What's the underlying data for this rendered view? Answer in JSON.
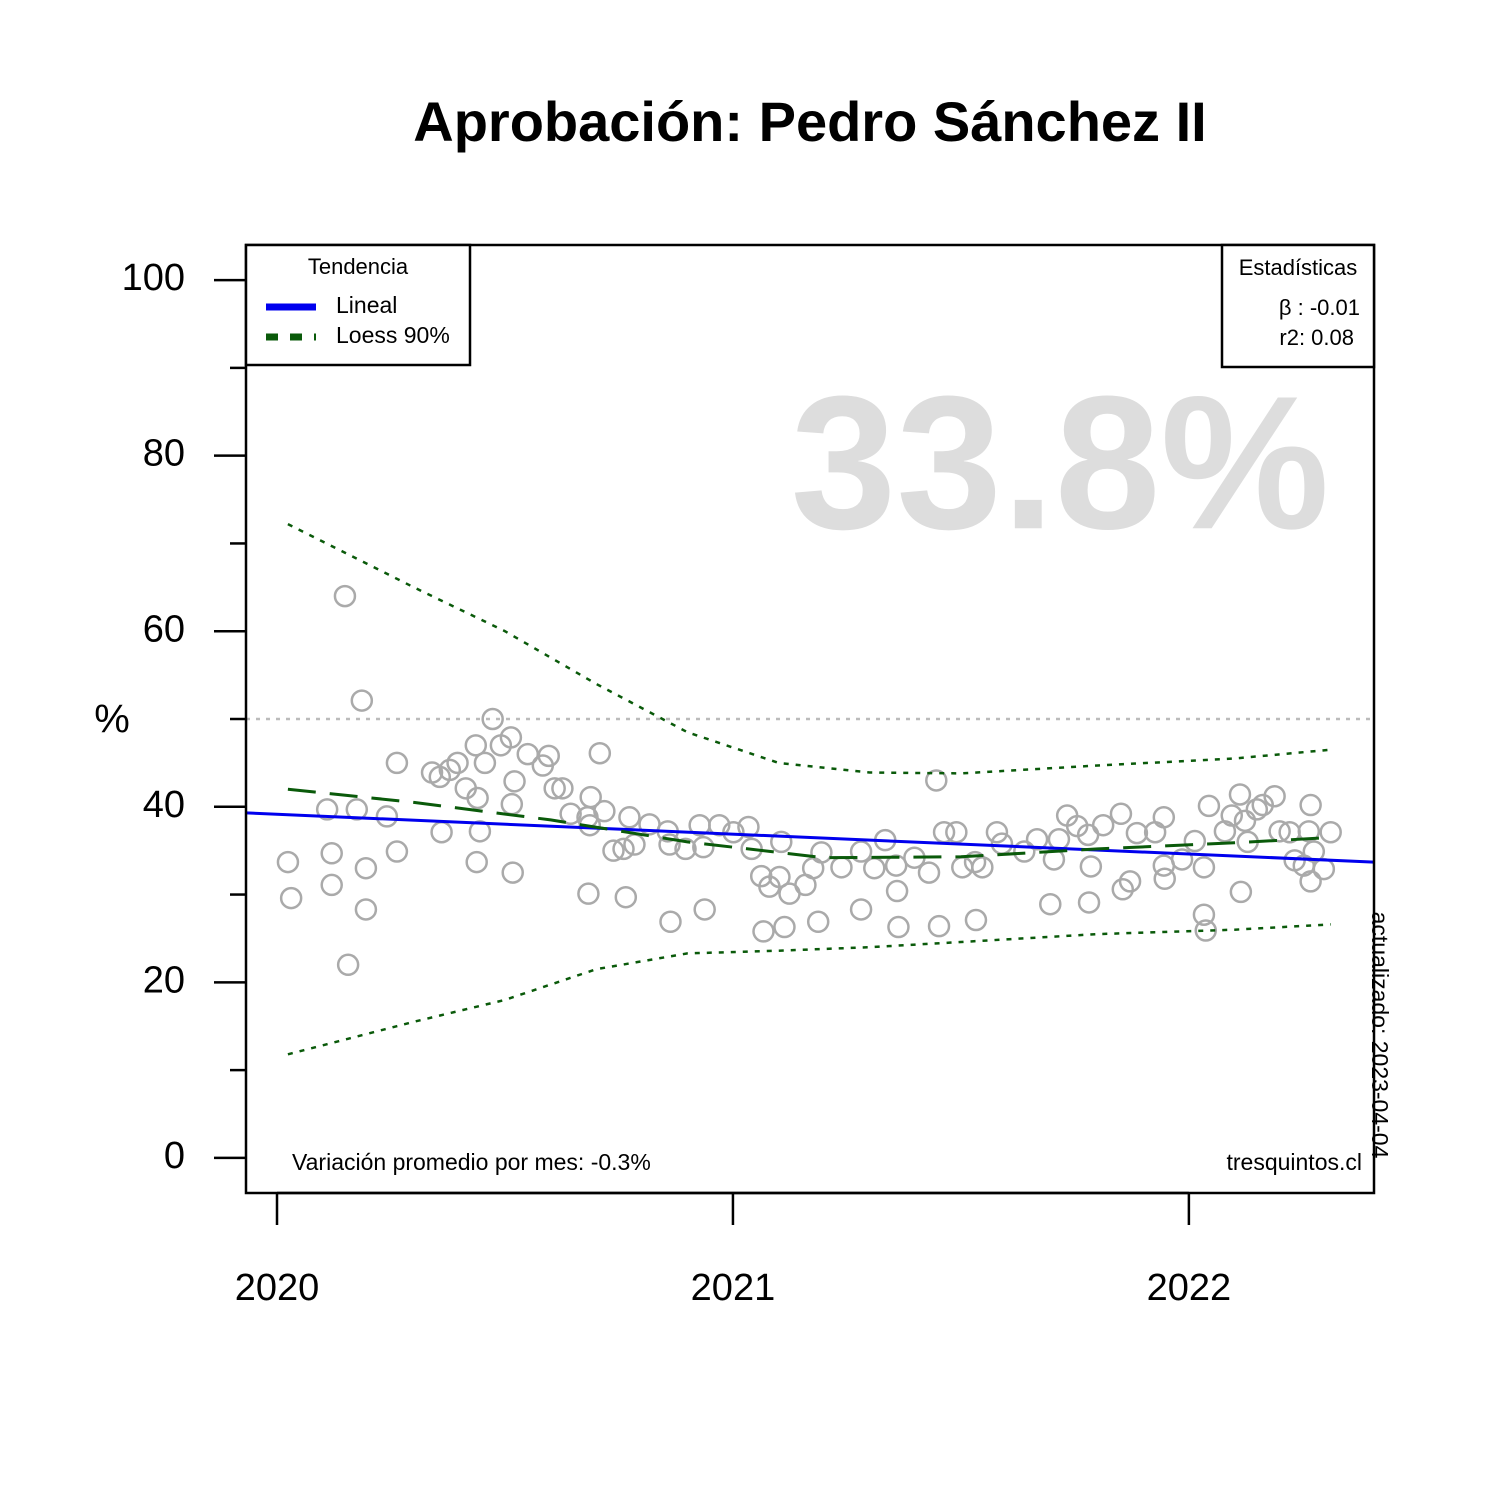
{
  "chart_data": {
    "type": "scatter",
    "title": "Aprobación: Pedro Sánchez II",
    "ylabel": "%",
    "highlight": "33.8%",
    "legend_title": "Tendencia",
    "legend_position": "top-left",
    "stats_title": "Estadísticas",
    "stats": [
      "β : -0.01",
      "r2: 0.08"
    ],
    "footnote_left": "Variación promedio por mes: -0.3%",
    "footnote_right": "tresquintos.cl",
    "updated": "actualizado: 2023-04-04",
    "xlim": [
      2019.932,
      2022.406
    ],
    "xticks": [
      2020,
      2021,
      2022
    ],
    "ylim": [
      -4,
      104
    ],
    "yticks": [
      0,
      20,
      40,
      60,
      80,
      100
    ],
    "yminor_ticks": [
      10,
      30,
      50,
      70,
      90
    ],
    "hline": 50,
    "hline_color": "#bbbbbb",
    "color": "#aaaaaa",
    "x": [
      2020.024,
      2020.031,
      2020.11,
      2020.12,
      2020.12,
      2020.149,
      2020.156,
      2020.175,
      2020.186,
      2020.195,
      2020.195,
      2020.241,
      2020.263,
      2020.263,
      2020.34,
      2020.357,
      2020.361,
      2020.379,
      2020.396,
      2020.414,
      2020.436,
      2020.438,
      2020.44,
      2020.445,
      2020.456,
      2020.473,
      2020.491,
      2020.513,
      2020.515,
      2020.517,
      2020.521,
      2020.55,
      2020.583,
      2020.596,
      2020.609,
      2020.626,
      2020.644,
      2020.681,
      2020.683,
      2020.686,
      2020.688,
      2020.708,
      2020.718,
      2020.738,
      2020.76,
      2020.765,
      2020.773,
      2020.784,
      2020.817,
      2020.857,
      2020.861,
      2020.863,
      2020.896,
      2020.927,
      2020.935,
      2020.938,
      2020.97,
      2021.001,
      2021.034,
      2021.041,
      2021.062,
      2021.067,
      2021.08,
      2021.102,
      2021.106,
      2021.113,
      2021.124,
      2021.159,
      2021.176,
      2021.194,
      2021.187,
      2021.238,
      2021.281,
      2021.281,
      2021.31,
      2021.334,
      2021.358,
      2021.36,
      2021.363,
      2021.398,
      2021.43,
      2021.446,
      2021.452,
      2021.463,
      2021.49,
      2021.503,
      2021.531,
      2021.533,
      2021.547,
      2021.579,
      2021.59,
      2021.639,
      2021.667,
      2021.696,
      2021.704,
      2021.715,
      2021.733,
      2021.755,
      2021.779,
      2021.781,
      2021.785,
      2021.812,
      2021.851,
      2021.855,
      2021.871,
      2021.886,
      2021.926,
      2021.945,
      2021.945,
      2021.947,
      2021.985,
      2022.013,
      2022.033,
      2022.033,
      2022.037,
      2022.044,
      2022.079,
      2022.094,
      2022.112,
      2022.114,
      2022.123,
      2022.129,
      2022.149,
      2022.162,
      2022.188,
      2022.199,
      2022.221,
      2022.232,
      2022.252,
      2022.263,
      2022.267,
      2022.267,
      2022.274,
      2022.296,
      2022.311
    ],
    "values": [
      33.7,
      29.6,
      39.7,
      34.7,
      31.1,
      64.0,
      22.0,
      39.7,
      52.1,
      33.0,
      28.3,
      38.9,
      45.0,
      34.9,
      43.9,
      43.4,
      37.1,
      44.2,
      45.0,
      42.1,
      47.0,
      33.7,
      41.0,
      37.2,
      45.0,
      50.0,
      47.0,
      47.9,
      40.3,
      32.5,
      42.9,
      46.0,
      44.7,
      45.8,
      42.1,
      42.1,
      39.2,
      38.8,
      30.1,
      37.9,
      41.1,
      46.1,
      39.5,
      35.0,
      35.2,
      29.7,
      38.8,
      35.7,
      38.0,
      37.2,
      35.7,
      26.9,
      35.2,
      37.9,
      35.4,
      28.3,
      37.9,
      37.1,
      37.7,
      35.2,
      32.1,
      25.8,
      30.9,
      32.0,
      36.0,
      26.3,
      30.1,
      31.1,
      33.0,
      34.8,
      26.9,
      33.1,
      34.9,
      28.3,
      33.0,
      36.2,
      33.3,
      30.4,
      26.3,
      34.2,
      32.5,
      43.0,
      26.4,
      37.1,
      37.1,
      33.1,
      33.7,
      27.1,
      33.1,
      37.1,
      35.8,
      34.9,
      36.3,
      28.9,
      34.0,
      36.3,
      39.0,
      37.8,
      36.8,
      29.1,
      33.2,
      37.9,
      39.2,
      30.6,
      31.5,
      37.0,
      37.1,
      38.8,
      33.3,
      31.8,
      34.0,
      36.1,
      33.1,
      27.7,
      25.9,
      40.1,
      37.2,
      39.0,
      41.4,
      30.3,
      38.4,
      36.0,
      39.7,
      40.2,
      41.2,
      37.2,
      37.1,
      33.9,
      33.3,
      37.2,
      40.2,
      31.5,
      34.9,
      32.9,
      37.1
    ],
    "lines": [
      {
        "name": "Lineal",
        "color": "#0000ee",
        "style": "solid",
        "x": [
          2019.932,
          2022.406
        ],
        "values": [
          39.3,
          33.7
        ]
      },
      {
        "name": "Loess 90%",
        "color": "#0a5a0a",
        "style": "dashed",
        "x": [
          2020.024,
          2020.3,
          2020.6,
          2020.9,
          2021.2,
          2021.5,
          2021.8,
          2022.1,
          2022.311
        ],
        "values": [
          42.0,
          40.5,
          38.5,
          36.0,
          34.2,
          34.3,
          35.2,
          35.9,
          36.5
        ]
      }
    ],
    "interval": {
      "color": "#0a5a0a",
      "x": [
        2020.024,
        2020.3,
        2020.5,
        2020.7,
        2020.9,
        2021.1,
        2021.3,
        2021.5,
        2021.8,
        2022.1,
        2022.311
      ],
      "upper": [
        72.2,
        65,
        60,
        54,
        48.5,
        45,
        43.9,
        43.8,
        44.7,
        45.5,
        46.5
      ],
      "lower": [
        11.8,
        15.5,
        18,
        21.5,
        23.3,
        23.6,
        24,
        24.6,
        25.5,
        26,
        26.6
      ]
    }
  }
}
